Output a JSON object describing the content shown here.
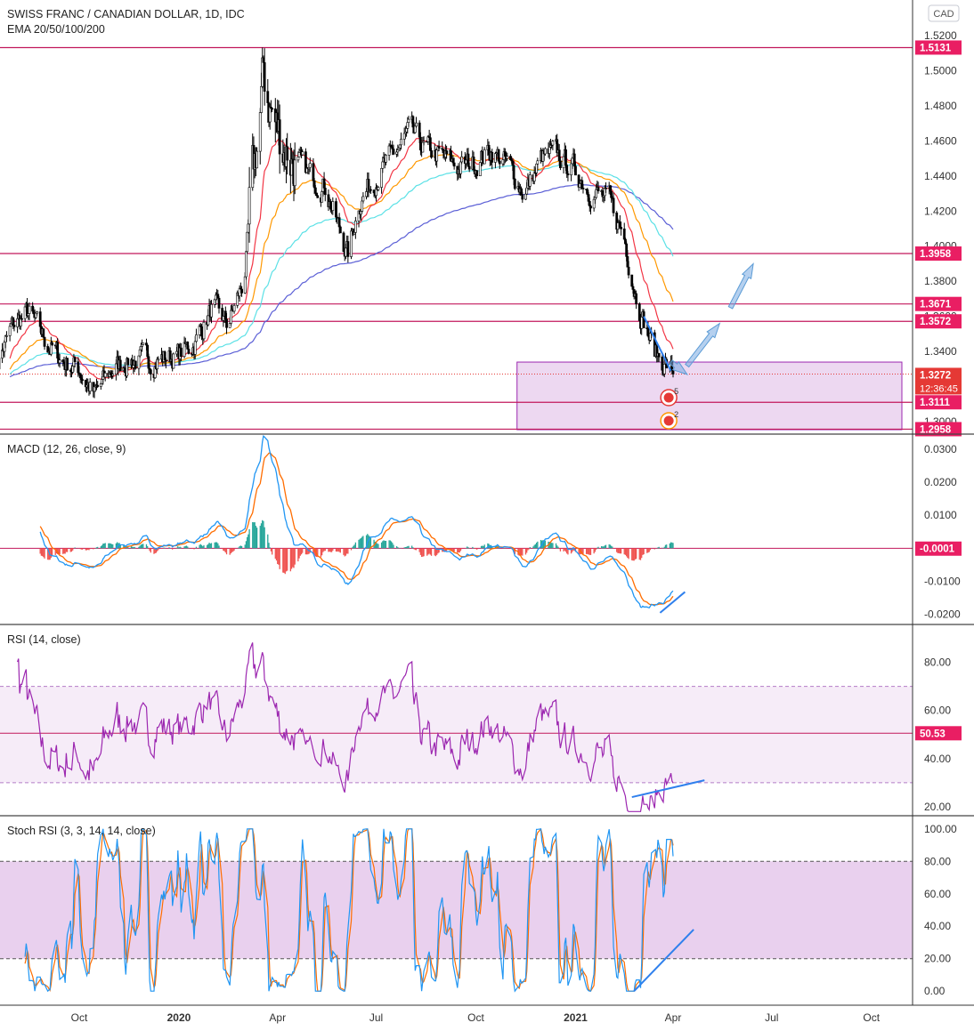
{
  "header": {
    "title": "SWISS FRANC / CANADIAN DOLLAR, 1D, IDC",
    "indicator": "EMA 20/50/100/200",
    "currency_button": "CAD"
  },
  "countdown": "12:36:45",
  "panes": {
    "price": {
      "ticks": [
        "1.5200",
        "1.5000",
        "1.4800",
        "1.4600",
        "1.4400",
        "1.4200",
        "1.4000",
        "1.3800",
        "1.3600",
        "1.3400",
        "1.3200",
        "1.3000"
      ],
      "tick_values": [
        1.52,
        1.5,
        1.48,
        1.46,
        1.44,
        1.42,
        1.4,
        1.38,
        1.36,
        1.34,
        1.32,
        1.3
      ],
      "range": [
        1.294,
        1.526
      ],
      "levels": [
        {
          "label": "1.5131",
          "value": 1.5131
        },
        {
          "label": "1.3958",
          "value": 1.3958
        },
        {
          "label": "1.3671",
          "value": 1.3671
        },
        {
          "label": "1.3572",
          "value": 1.3572
        },
        {
          "label": "1.3111",
          "value": 1.3111
        },
        {
          "label": "1.2958",
          "value": 1.2958
        }
      ],
      "last_price": {
        "label": "1.3272",
        "value": 1.3272
      },
      "box": {
        "from_date": "2020-11-08",
        "to_date": "2021-09-21",
        "top": 1.334,
        "bottom": 1.2955
      },
      "ema_colors": {
        "ema20": "#f23645",
        "ema50": "#ff9800",
        "ema100": "#5ce1e6",
        "ema200": "#5b5fd6"
      },
      "events": [
        {
          "count": "5"
        },
        {
          "count": "2"
        }
      ]
    },
    "macd": {
      "title": "MACD (12, 26, close, 9)",
      "ticks": [
        "0.0300",
        "0.0200",
        "0.0100",
        "0.0000",
        "-0.0100",
        "-0.0200"
      ],
      "tick_values": [
        0.03,
        0.02,
        0.01,
        0.0,
        -0.01,
        -0.02
      ],
      "range": [
        -0.0225,
        0.034
      ],
      "last": {
        "label": "-0.0001",
        "value": -0.0001
      }
    },
    "rsi": {
      "title": "RSI (14, close)",
      "ticks": [
        "80.00",
        "60.00",
        "40.00",
        "20.00"
      ],
      "tick_values": [
        80,
        60,
        40,
        20
      ],
      "range": [
        17,
        95
      ],
      "band": [
        30,
        70
      ],
      "last": {
        "label": "50.53",
        "value": 50.53
      }
    },
    "stoch": {
      "title": "Stoch RSI (3, 3, 14, 14, close)",
      "ticks": [
        "100.00",
        "80.00",
        "60.00",
        "40.00",
        "20.00",
        "0.00"
      ],
      "tick_values": [
        100,
        80,
        60,
        40,
        20,
        0
      ],
      "range": [
        -7,
        107
      ],
      "band": [
        20,
        80
      ]
    }
  },
  "time_axis": {
    "labels": [
      {
        "text": "Oct",
        "date": "2019-10-01",
        "bold": false
      },
      {
        "text": "2020",
        "date": "2020-01-01",
        "bold": true
      },
      {
        "text": "Apr",
        "date": "2020-04-01",
        "bold": false
      },
      {
        "text": "Jul",
        "date": "2020-07-01",
        "bold": false
      },
      {
        "text": "Oct",
        "date": "2020-10-01",
        "bold": false
      },
      {
        "text": "2021",
        "date": "2021-01-01",
        "bold": true
      },
      {
        "text": "Apr",
        "date": "2021-04-01",
        "bold": false
      },
      {
        "text": "Jul",
        "date": "2021-07-01",
        "bold": false
      },
      {
        "text": "Oct",
        "date": "2021-10-01",
        "bold": false
      }
    ]
  },
  "chart_data": [
    {
      "type": "candlestick",
      "title": "SWISS FRANC / CANADIAN DOLLAR, 1D, IDC",
      "period": [
        "2019-07-15",
        "2021-04-01"
      ],
      "price_path": [
        {
          "date": "2019-07-15",
          "close": 1.33
        },
        {
          "date": "2019-08-01",
          "close": 1.355
        },
        {
          "date": "2019-08-15",
          "close": 1.362
        },
        {
          "date": "2019-09-01",
          "close": 1.345
        },
        {
          "date": "2019-09-15",
          "close": 1.335
        },
        {
          "date": "2019-10-01",
          "close": 1.33
        },
        {
          "date": "2019-10-15",
          "close": 1.315
        },
        {
          "date": "2019-11-01",
          "close": 1.33
        },
        {
          "date": "2019-11-15",
          "close": 1.335
        },
        {
          "date": "2019-12-01",
          "close": 1.335
        },
        {
          "date": "2019-12-15",
          "close": 1.336
        },
        {
          "date": "2020-01-01",
          "close": 1.338
        },
        {
          "date": "2020-01-15",
          "close": 1.345
        },
        {
          "date": "2020-02-01",
          "close": 1.365
        },
        {
          "date": "2020-02-15",
          "close": 1.355
        },
        {
          "date": "2020-03-01",
          "close": 1.38
        },
        {
          "date": "2020-03-10",
          "close": 1.44
        },
        {
          "date": "2020-03-19",
          "close": 1.495
        },
        {
          "date": "2020-04-01",
          "close": 1.465
        },
        {
          "date": "2020-04-15",
          "close": 1.45
        },
        {
          "date": "2020-05-01",
          "close": 1.44
        },
        {
          "date": "2020-05-15",
          "close": 1.435
        },
        {
          "date": "2020-05-25",
          "close": 1.415
        },
        {
          "date": "2020-06-05",
          "close": 1.395
        },
        {
          "date": "2020-06-15",
          "close": 1.425
        },
        {
          "date": "2020-07-01",
          "close": 1.44
        },
        {
          "date": "2020-07-15",
          "close": 1.45
        },
        {
          "date": "2020-08-01",
          "close": 1.465
        },
        {
          "date": "2020-08-15",
          "close": 1.455
        },
        {
          "date": "2020-09-01",
          "close": 1.45
        },
        {
          "date": "2020-09-15",
          "close": 1.445
        },
        {
          "date": "2020-10-01",
          "close": 1.448
        },
        {
          "date": "2020-10-15",
          "close": 1.455
        },
        {
          "date": "2020-11-01",
          "close": 1.445
        },
        {
          "date": "2020-11-15",
          "close": 1.43
        },
        {
          "date": "2020-12-01",
          "close": 1.45
        },
        {
          "date": "2020-12-15",
          "close": 1.452
        },
        {
          "date": "2021-01-01",
          "close": 1.443
        },
        {
          "date": "2021-01-15",
          "close": 1.432
        },
        {
          "date": "2021-02-01",
          "close": 1.425
        },
        {
          "date": "2021-02-15",
          "close": 1.405
        },
        {
          "date": "2021-02-25",
          "close": 1.375
        },
        {
          "date": "2021-03-05",
          "close": 1.357
        },
        {
          "date": "2021-03-15",
          "close": 1.34
        },
        {
          "date": "2021-03-25",
          "close": 1.333
        },
        {
          "date": "2021-04-01",
          "close": 1.3272
        }
      ],
      "overlays": [
        "EMA 20",
        "EMA 50",
        "EMA 100",
        "EMA 200"
      ],
      "horizontal_levels": [
        1.5131,
        1.3958,
        1.3671,
        1.3572,
        1.3111,
        1.2958
      ],
      "last_price": 1.3272
    },
    {
      "type": "line",
      "title": "MACD (12, 26, close, 9)",
      "series": [
        {
          "values_summary": "peak 0.029 Mar 2020, trough -0.019 Mar 2021"
        }
      ],
      "ylim": [
        -0.0225,
        0.034
      ],
      "last_value": -0.0001
    },
    {
      "type": "line",
      "title": "RSI (14, close)",
      "ylim": [
        17,
        95
      ],
      "band": [
        30,
        70
      ],
      "last_value": 50.53
    },
    {
      "type": "line",
      "title": "Stoch RSI (3, 3, 14, 14, close)",
      "ylim": [
        -7,
        107
      ],
      "band": [
        20,
        80
      ]
    }
  ]
}
